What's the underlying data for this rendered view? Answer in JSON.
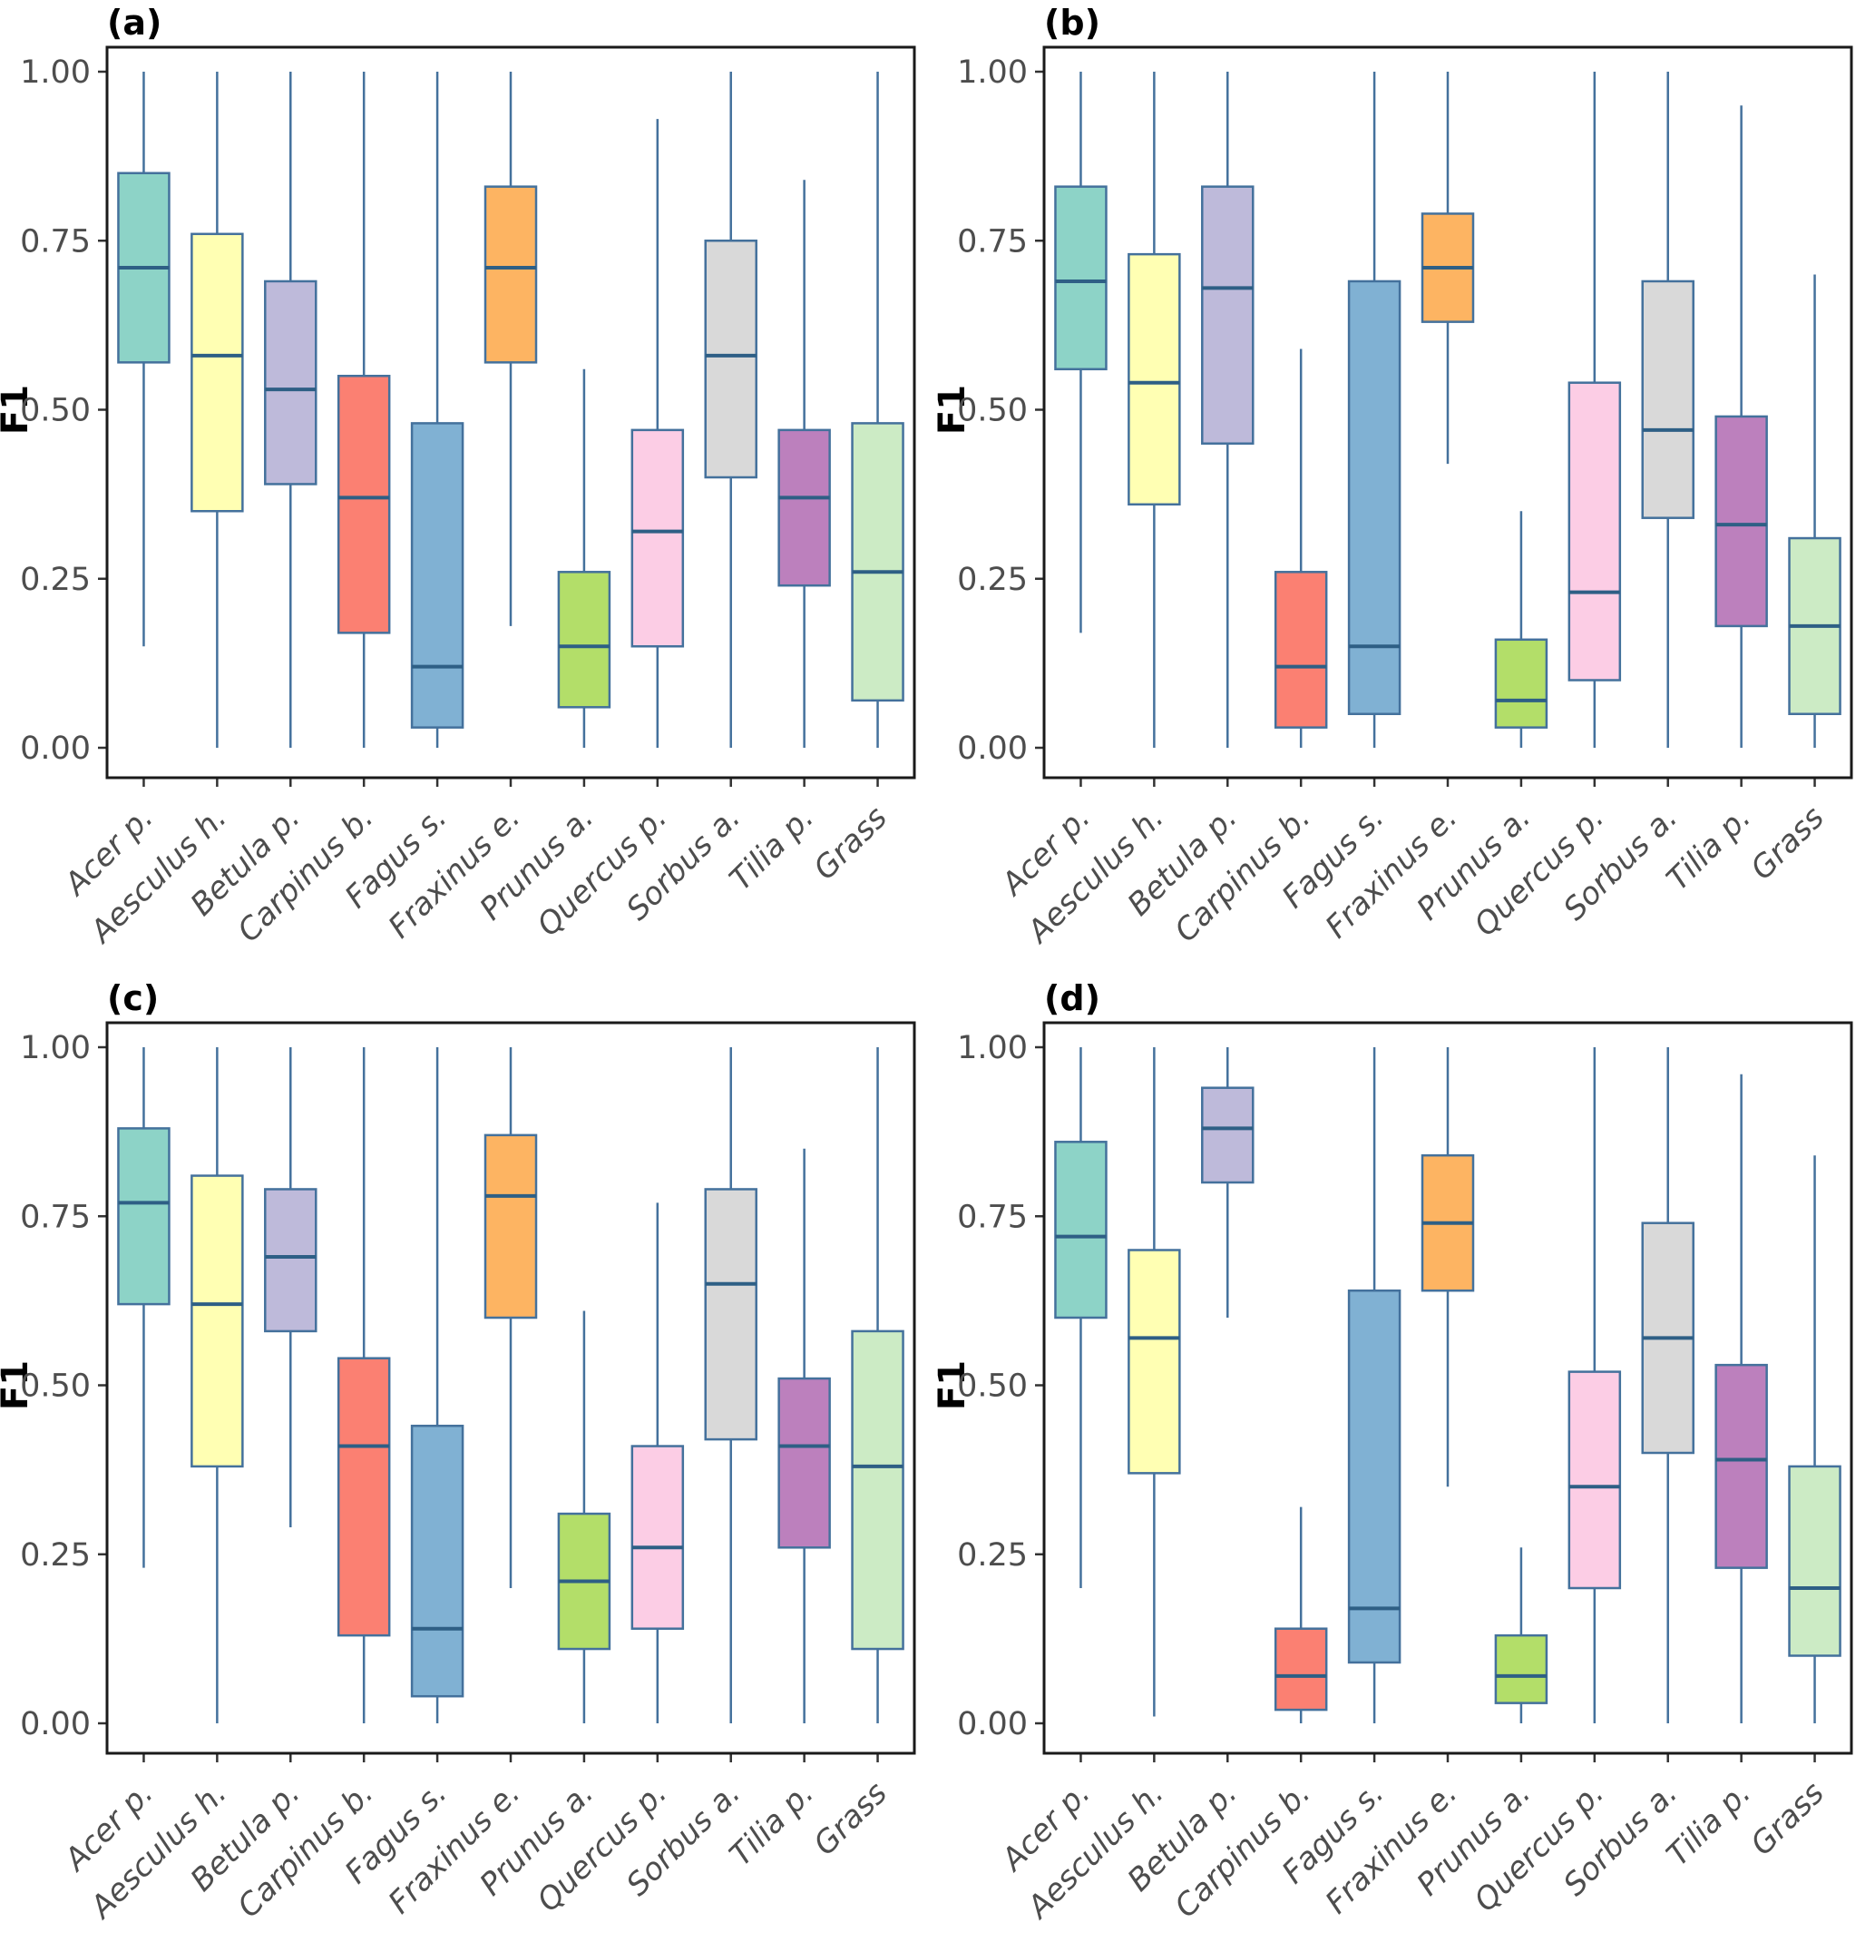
{
  "figure": {
    "background": "#ffffff",
    "ylabel": "F1",
    "box_stroke_color": "#44719c",
    "median_color": "#2e5f85",
    "panel_border_color": "#1a1a1a",
    "tick_color": "#333333",
    "tick_label_color": "#4d4d4d",
    "category_colors": {
      "Acer p.": "#8dd3c7",
      "Aesculus h.": "#ffffb3",
      "Betula p.": "#bebada",
      "Carpinus b.": "#fb8072",
      "Fagus s.": "#80b1d3",
      "Fraxinus e.": "#fdb462",
      "Prunus a.": "#b3de69",
      "Quercus p.": "#fccde5",
      "Sorbus a.": "#d9d9d9",
      "Tilia p.": "#bc80bd",
      "Grass": "#ccebc5"
    }
  },
  "chart_data": [
    {
      "type": "boxplot",
      "panel_label": "(a)",
      "ylabel": "F1",
      "ylim": [
        0,
        1
      ],
      "yticks": [
        "0.00",
        "0.25",
        "0.50",
        "0.75",
        "1.00"
      ],
      "ytick_values": [
        0,
        0.25,
        0.5,
        0.75,
        1
      ],
      "grid": false,
      "boxes": [
        {
          "category": "Acer p.",
          "whisker_low": 0.15,
          "q1": 0.57,
          "median": 0.71,
          "q3": 0.85,
          "whisker_high": 1.0
        },
        {
          "category": "Aesculus h.",
          "whisker_low": 0.0,
          "q1": 0.35,
          "median": 0.58,
          "q3": 0.76,
          "whisker_high": 1.0
        },
        {
          "category": "Betula p.",
          "whisker_low": 0.0,
          "q1": 0.39,
          "median": 0.53,
          "q3": 0.69,
          "whisker_high": 1.0
        },
        {
          "category": "Carpinus b.",
          "whisker_low": 0.0,
          "q1": 0.17,
          "median": 0.37,
          "q3": 0.55,
          "whisker_high": 1.0
        },
        {
          "category": "Fagus s.",
          "whisker_low": 0.0,
          "q1": 0.03,
          "median": 0.12,
          "q3": 0.48,
          "whisker_high": 1.0
        },
        {
          "category": "Fraxinus e.",
          "whisker_low": 0.18,
          "q1": 0.57,
          "median": 0.71,
          "q3": 0.83,
          "whisker_high": 1.0
        },
        {
          "category": "Prunus a.",
          "whisker_low": 0.0,
          "q1": 0.06,
          "median": 0.15,
          "q3": 0.26,
          "whisker_high": 0.56
        },
        {
          "category": "Quercus p.",
          "whisker_low": 0.0,
          "q1": 0.15,
          "median": 0.32,
          "q3": 0.47,
          "whisker_high": 0.93
        },
        {
          "category": "Sorbus a.",
          "whisker_low": 0.0,
          "q1": 0.4,
          "median": 0.58,
          "q3": 0.75,
          "whisker_high": 1.0
        },
        {
          "category": "Tilia p.",
          "whisker_low": 0.0,
          "q1": 0.24,
          "median": 0.37,
          "q3": 0.47,
          "whisker_high": 0.84
        },
        {
          "category": "Grass",
          "whisker_low": 0.0,
          "q1": 0.07,
          "median": 0.26,
          "q3": 0.48,
          "whisker_high": 1.0
        }
      ]
    },
    {
      "type": "boxplot",
      "panel_label": "(b)",
      "ylabel": "F1",
      "ylim": [
        0,
        1
      ],
      "yticks": [
        "0.00",
        "0.25",
        "0.50",
        "0.75",
        "1.00"
      ],
      "ytick_values": [
        0,
        0.25,
        0.5,
        0.75,
        1
      ],
      "grid": false,
      "boxes": [
        {
          "category": "Acer p.",
          "whisker_low": 0.17,
          "q1": 0.56,
          "median": 0.69,
          "q3": 0.83,
          "whisker_high": 1.0
        },
        {
          "category": "Aesculus h.",
          "whisker_low": 0.0,
          "q1": 0.36,
          "median": 0.54,
          "q3": 0.73,
          "whisker_high": 1.0
        },
        {
          "category": "Betula p.",
          "whisker_low": 0.0,
          "q1": 0.45,
          "median": 0.68,
          "q3": 0.83,
          "whisker_high": 1.0
        },
        {
          "category": "Carpinus b.",
          "whisker_low": 0.0,
          "q1": 0.03,
          "median": 0.12,
          "q3": 0.26,
          "whisker_high": 0.59
        },
        {
          "category": "Fagus s.",
          "whisker_low": 0.0,
          "q1": 0.05,
          "median": 0.15,
          "q3": 0.69,
          "whisker_high": 1.0
        },
        {
          "category": "Fraxinus e.",
          "whisker_low": 0.42,
          "q1": 0.63,
          "median": 0.71,
          "q3": 0.79,
          "whisker_high": 1.0
        },
        {
          "category": "Prunus a.",
          "whisker_low": 0.0,
          "q1": 0.03,
          "median": 0.07,
          "q3": 0.16,
          "whisker_high": 0.35
        },
        {
          "category": "Quercus p.",
          "whisker_low": 0.0,
          "q1": 0.1,
          "median": 0.23,
          "q3": 0.54,
          "whisker_high": 1.0
        },
        {
          "category": "Sorbus a.",
          "whisker_low": 0.0,
          "q1": 0.34,
          "median": 0.47,
          "q3": 0.69,
          "whisker_high": 1.0
        },
        {
          "category": "Tilia p.",
          "whisker_low": 0.0,
          "q1": 0.18,
          "median": 0.33,
          "q3": 0.49,
          "whisker_high": 0.95
        },
        {
          "category": "Grass",
          "whisker_low": 0.0,
          "q1": 0.05,
          "median": 0.18,
          "q3": 0.31,
          "whisker_high": 0.7
        }
      ]
    },
    {
      "type": "boxplot",
      "panel_label": "(c)",
      "ylabel": "F1",
      "ylim": [
        0,
        1
      ],
      "yticks": [
        "0.00",
        "0.25",
        "0.50",
        "0.75",
        "1.00"
      ],
      "ytick_values": [
        0,
        0.25,
        0.5,
        0.75,
        1
      ],
      "grid": false,
      "boxes": [
        {
          "category": "Acer p.",
          "whisker_low": 0.23,
          "q1": 0.62,
          "median": 0.77,
          "q3": 0.88,
          "whisker_high": 1.0
        },
        {
          "category": "Aesculus h.",
          "whisker_low": 0.0,
          "q1": 0.38,
          "median": 0.62,
          "q3": 0.81,
          "whisker_high": 1.0
        },
        {
          "category": "Betula p.",
          "whisker_low": 0.29,
          "q1": 0.58,
          "median": 0.69,
          "q3": 0.79,
          "whisker_high": 1.0
        },
        {
          "category": "Carpinus b.",
          "whisker_low": 0.0,
          "q1": 0.13,
          "median": 0.41,
          "q3": 0.54,
          "whisker_high": 1.0
        },
        {
          "category": "Fagus s.",
          "whisker_low": 0.0,
          "q1": 0.04,
          "median": 0.14,
          "q3": 0.44,
          "whisker_high": 1.0
        },
        {
          "category": "Fraxinus e.",
          "whisker_low": 0.2,
          "q1": 0.6,
          "median": 0.78,
          "q3": 0.87,
          "whisker_high": 1.0
        },
        {
          "category": "Prunus a.",
          "whisker_low": 0.0,
          "q1": 0.11,
          "median": 0.21,
          "q3": 0.31,
          "whisker_high": 0.61
        },
        {
          "category": "Quercus p.",
          "whisker_low": 0.0,
          "q1": 0.14,
          "median": 0.26,
          "q3": 0.41,
          "whisker_high": 0.77
        },
        {
          "category": "Sorbus a.",
          "whisker_low": 0.0,
          "q1": 0.42,
          "median": 0.65,
          "q3": 0.79,
          "whisker_high": 1.0
        },
        {
          "category": "Tilia p.",
          "whisker_low": 0.0,
          "q1": 0.26,
          "median": 0.41,
          "q3": 0.51,
          "whisker_high": 0.85
        },
        {
          "category": "Grass",
          "whisker_low": 0.0,
          "q1": 0.11,
          "median": 0.38,
          "q3": 0.58,
          "whisker_high": 1.0
        }
      ]
    },
    {
      "type": "boxplot",
      "panel_label": "(d)",
      "ylabel": "F1",
      "ylim": [
        0,
        1
      ],
      "yticks": [
        "0.00",
        "0.25",
        "0.50",
        "0.75",
        "1.00"
      ],
      "ytick_values": [
        0,
        0.25,
        0.5,
        0.75,
        1
      ],
      "grid": false,
      "boxes": [
        {
          "category": "Acer p.",
          "whisker_low": 0.2,
          "q1": 0.6,
          "median": 0.72,
          "q3": 0.86,
          "whisker_high": 1.0
        },
        {
          "category": "Aesculus h.",
          "whisker_low": 0.01,
          "q1": 0.37,
          "median": 0.57,
          "q3": 0.7,
          "whisker_high": 1.0
        },
        {
          "category": "Betula p.",
          "whisker_low": 0.6,
          "q1": 0.8,
          "median": 0.88,
          "q3": 0.94,
          "whisker_high": 1.0
        },
        {
          "category": "Carpinus b.",
          "whisker_low": 0.0,
          "q1": 0.02,
          "median": 0.07,
          "q3": 0.14,
          "whisker_high": 0.32
        },
        {
          "category": "Fagus s.",
          "whisker_low": 0.0,
          "q1": 0.09,
          "median": 0.17,
          "q3": 0.64,
          "whisker_high": 1.0
        },
        {
          "category": "Fraxinus e.",
          "whisker_low": 0.35,
          "q1": 0.64,
          "median": 0.74,
          "q3": 0.84,
          "whisker_high": 1.0
        },
        {
          "category": "Prunus a.",
          "whisker_low": 0.0,
          "q1": 0.03,
          "median": 0.07,
          "q3": 0.13,
          "whisker_high": 0.26
        },
        {
          "category": "Quercus p.",
          "whisker_low": 0.0,
          "q1": 0.2,
          "median": 0.35,
          "q3": 0.52,
          "whisker_high": 1.0
        },
        {
          "category": "Sorbus a.",
          "whisker_low": 0.0,
          "q1": 0.4,
          "median": 0.57,
          "q3": 0.74,
          "whisker_high": 1.0
        },
        {
          "category": "Tilia p.",
          "whisker_low": 0.0,
          "q1": 0.23,
          "median": 0.39,
          "q3": 0.53,
          "whisker_high": 0.96
        },
        {
          "category": "Grass",
          "whisker_low": 0.0,
          "q1": 0.1,
          "median": 0.2,
          "q3": 0.38,
          "whisker_high": 0.84
        }
      ]
    }
  ]
}
